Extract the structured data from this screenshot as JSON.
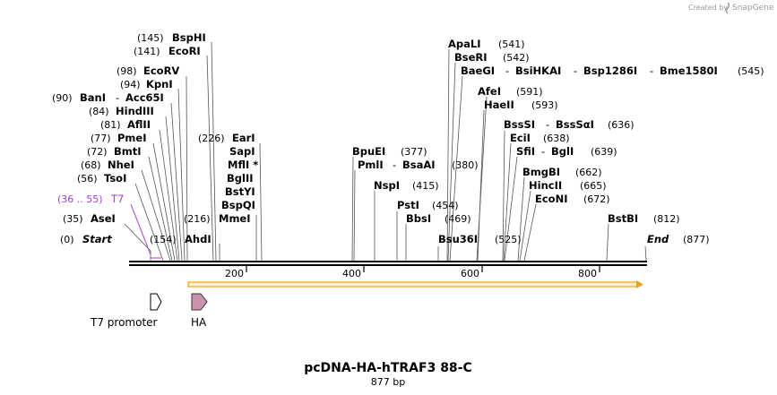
{
  "credit": {
    "prefix": "Created by",
    "brand": "SnapGene"
  },
  "title": "pcDNA-HA-hTRAF3 88-C",
  "subtitle": "877 bp",
  "axis_ticks": [
    "200",
    "400",
    "600",
    "800"
  ],
  "labels": {
    "L1": {
      "pos": "(145)",
      "name": "BspHI"
    },
    "L2": {
      "pos": "(141)",
      "name": "EcoRI"
    },
    "L3": {
      "pos": "(98)",
      "name": "EcoRV"
    },
    "L4": {
      "pos": "(94)",
      "name": "KpnI"
    },
    "L5": {
      "pos": "(90)",
      "name": "BanI",
      "sep": "-",
      "name2": "Acc65I"
    },
    "L6": {
      "pos": "(84)",
      "name": "HindIII"
    },
    "L7": {
      "pos": "(81)",
      "name": "AflII"
    },
    "L8": {
      "pos": "(77)",
      "name": "PmeI"
    },
    "L9": {
      "pos": "(72)",
      "name": "BmtI"
    },
    "L10": {
      "pos": "(68)",
      "name": "NheI"
    },
    "L11": {
      "pos": "(56)",
      "name": "TsoI"
    },
    "L12": {
      "pos": "(36 .. 55)",
      "name": "T7"
    },
    "L13": {
      "pos": "(35)",
      "name": "AseI"
    },
    "L14": {
      "pos": "(0)",
      "name": "Start"
    },
    "L15": {
      "pos": "(154)",
      "name": "AhdI"
    },
    "L16": {
      "pos": "(226)",
      "name": "EarI"
    },
    "L17": {
      "name": "SapI"
    },
    "L18": {
      "name": "MflI *"
    },
    "L19": {
      "name": "BglII"
    },
    "L20": {
      "name": "BstYI"
    },
    "L21": {
      "name": "BspQI"
    },
    "L22": {
      "pos": "(216)",
      "name": "MmeI"
    },
    "L23": {
      "name": "BpuEI",
      "pos": "(377)"
    },
    "L24": {
      "name": "PmlI",
      "sep": "-",
      "name2": "BsaAI",
      "pos": "(380)"
    },
    "L25": {
      "name": "NspI",
      "pos": "(415)"
    },
    "L26": {
      "name": "PstI",
      "pos": "(454)"
    },
    "L27": {
      "name": "BbsI",
      "pos": "(469)"
    },
    "L28": {
      "name": "Bsu36I",
      "pos": "(525)"
    },
    "L29": {
      "name": "ApaLI",
      "pos": "(541)"
    },
    "L30": {
      "name": "BseRI",
      "pos": "(542)"
    },
    "L31": {
      "name": "BaeGI",
      "sep": "-",
      "name2": "BsiHKAI",
      "sep2": "-",
      "name3": "Bsp1286I",
      "sep3": "-",
      "name4": "Bme1580I",
      "pos": "(545)"
    },
    "L32": {
      "name": "AfeI",
      "pos": "(591)"
    },
    "L33": {
      "name": "HaeII",
      "pos": "(593)"
    },
    "L34": {
      "name": "BssSI",
      "sep": "-",
      "name2": "BssSαI",
      "pos": "(636)"
    },
    "L35": {
      "name": "EciI",
      "pos": "(638)"
    },
    "L36": {
      "name": "SfiI",
      "sep": "-",
      "name2": "BglI",
      "pos": "(639)"
    },
    "L37": {
      "name": "BmgBI",
      "pos": "(662)"
    },
    "L38": {
      "name": "HincII",
      "pos": "(665)"
    },
    "L39": {
      "name": "EcoNI",
      "pos": "(672)"
    },
    "L40": {
      "name": "BstBI",
      "pos": "(812)"
    },
    "L41": {
      "name": "End",
      "pos": "(877)"
    }
  },
  "features": {
    "t7_promoter": "T7 promoter",
    "ha": "HA"
  },
  "colors": {
    "t7": "#a63fd1",
    "orf_stroke": "#e8a317",
    "ha_fill": "#c993ad",
    "credit": "#9a9a9a"
  }
}
